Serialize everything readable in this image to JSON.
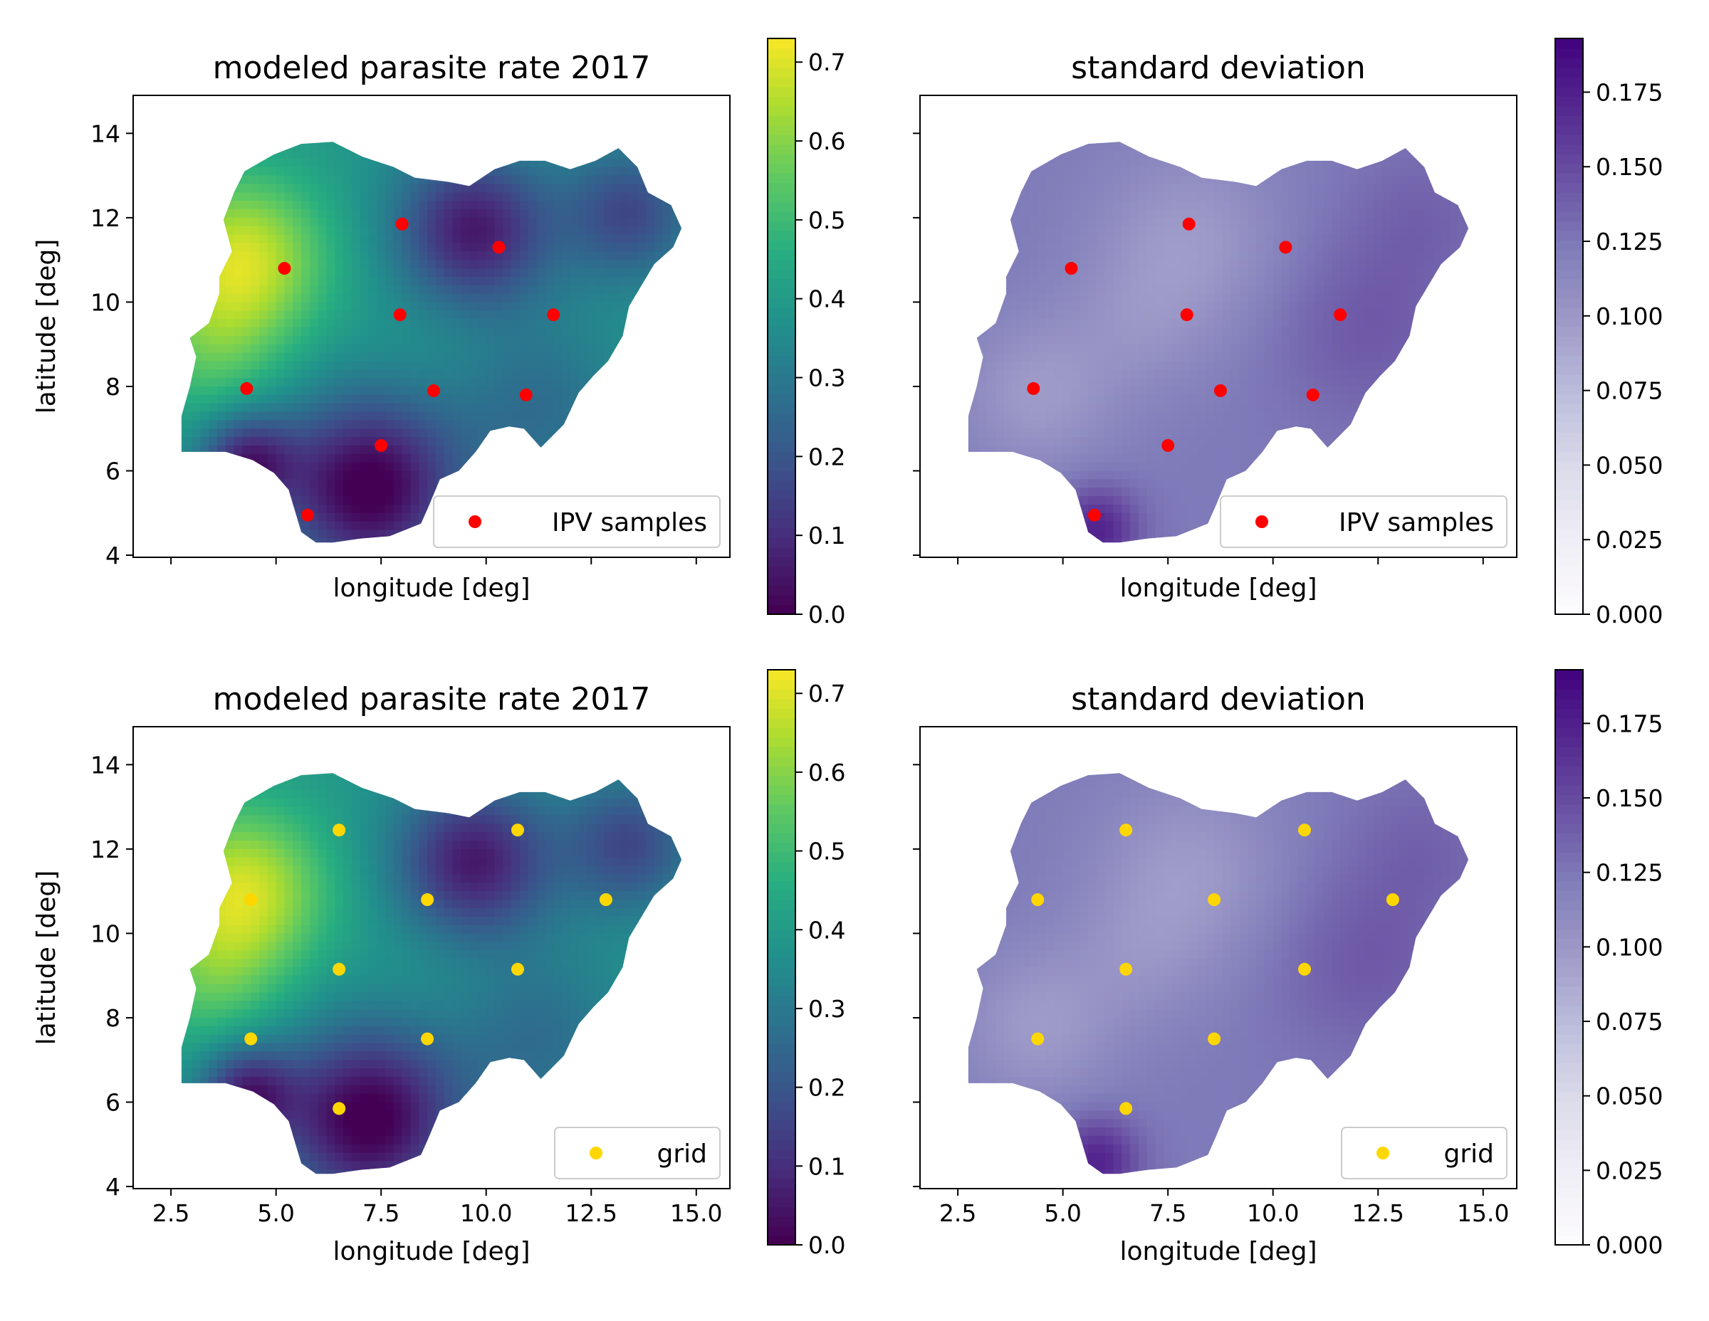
{
  "colors": {
    "sample_marker": "#ff0000",
    "grid_marker": "#ffd700",
    "viridis": [
      "#440154",
      "#472d7b",
      "#3b528b",
      "#2c728e",
      "#21918c",
      "#28ae80",
      "#5ec962",
      "#addc30",
      "#fde725"
    ],
    "purples": [
      "#fcfbfd",
      "#efedf5",
      "#dadaeb",
      "#bcbddc",
      "#9e9ac8",
      "#807dba",
      "#6a51a3",
      "#54278f",
      "#3f007d"
    ]
  },
  "chart_data": [
    {
      "type": "heatmap",
      "id": "rate-samples",
      "title": "modeled parasite rate 2017",
      "xlabel": "longitude [deg]",
      "ylabel": "latitude [deg]",
      "xlim": [
        1.6,
        15.8
      ],
      "ylim": [
        3.95,
        14.9
      ],
      "xticks": [
        2.5,
        5.0,
        7.5,
        10.0,
        12.5,
        15.0
      ],
      "xtick_labels": [
        "",
        "",
        "",
        "",
        "",
        ""
      ],
      "yticks": [
        4,
        6,
        8,
        10,
        12,
        14
      ],
      "ytick_labels": [
        "4",
        "6",
        "8",
        "10",
        "12",
        "14"
      ],
      "colormap": "viridis",
      "colorbar": {
        "min": 0.0,
        "max": 0.73,
        "ticks": [
          0.0,
          0.1,
          0.2,
          0.3,
          0.4,
          0.5,
          0.6,
          0.7
        ],
        "tick_labels": [
          "0.0",
          "0.1",
          "0.2",
          "0.3",
          "0.4",
          "0.5",
          "0.6",
          "0.7"
        ]
      },
      "legend": {
        "label": "IPV samples",
        "position": "lower-right"
      },
      "points": [
        {
          "x": 4.3,
          "y": 7.95
        },
        {
          "x": 5.2,
          "y": 10.8
        },
        {
          "x": 5.75,
          "y": 4.95
        },
        {
          "x": 7.5,
          "y": 6.6
        },
        {
          "x": 8.0,
          "y": 11.85
        },
        {
          "x": 7.95,
          "y": 9.7
        },
        {
          "x": 8.75,
          "y": 7.9
        },
        {
          "x": 10.3,
          "y": 11.3
        },
        {
          "x": 11.6,
          "y": 9.7
        },
        {
          "x": 10.95,
          "y": 7.8
        }
      ]
    },
    {
      "type": "heatmap",
      "id": "sd-samples",
      "title": "standard deviation",
      "xlabel": "longitude [deg]",
      "ylabel": "",
      "xlim": [
        1.6,
        15.8
      ],
      "ylim": [
        3.95,
        14.9
      ],
      "xticks": [
        2.5,
        5.0,
        7.5,
        10.0,
        12.5,
        15.0
      ],
      "xtick_labels": [
        "",
        "",
        "",
        "",
        "",
        ""
      ],
      "yticks": [
        4,
        6,
        8,
        10,
        12,
        14
      ],
      "ytick_labels": [
        "",
        "",
        "",
        "",
        "",
        ""
      ],
      "colormap": "purples",
      "colorbar": {
        "min": 0.0,
        "max": 0.193,
        "ticks": [
          0.0,
          0.025,
          0.05,
          0.075,
          0.1,
          0.125,
          0.15,
          0.175
        ],
        "tick_labels": [
          "0.000",
          "0.025",
          "0.050",
          "0.075",
          "0.100",
          "0.125",
          "0.150",
          "0.175"
        ]
      },
      "legend": {
        "label": "IPV samples",
        "position": "lower-right"
      },
      "points": [
        {
          "x": 4.3,
          "y": 7.95
        },
        {
          "x": 5.2,
          "y": 10.8
        },
        {
          "x": 5.75,
          "y": 4.95
        },
        {
          "x": 7.5,
          "y": 6.6
        },
        {
          "x": 8.0,
          "y": 11.85
        },
        {
          "x": 7.95,
          "y": 9.7
        },
        {
          "x": 8.75,
          "y": 7.9
        },
        {
          "x": 10.3,
          "y": 11.3
        },
        {
          "x": 11.6,
          "y": 9.7
        },
        {
          "x": 10.95,
          "y": 7.8
        }
      ]
    },
    {
      "type": "heatmap",
      "id": "rate-grid",
      "title": "modeled parasite rate 2017",
      "xlabel": "longitude [deg]",
      "ylabel": "latitude [deg]",
      "xlim": [
        1.6,
        15.8
      ],
      "ylim": [
        3.95,
        14.9
      ],
      "xticks": [
        2.5,
        5.0,
        7.5,
        10.0,
        12.5,
        15.0
      ],
      "xtick_labels": [
        "2.5",
        "5.0",
        "7.5",
        "10.0",
        "12.5",
        "15.0"
      ],
      "yticks": [
        4,
        6,
        8,
        10,
        12,
        14
      ],
      "ytick_labels": [
        "4",
        "6",
        "8",
        "10",
        "12",
        "14"
      ],
      "colormap": "viridis",
      "colorbar": {
        "min": 0.0,
        "max": 0.73,
        "ticks": [
          0.0,
          0.1,
          0.2,
          0.3,
          0.4,
          0.5,
          0.6,
          0.7
        ],
        "tick_labels": [
          "0.0",
          "0.1",
          "0.2",
          "0.3",
          "0.4",
          "0.5",
          "0.6",
          "0.7"
        ]
      },
      "legend": {
        "label": "grid",
        "position": "lower-right"
      },
      "points": [
        {
          "x": 4.4,
          "y": 10.8
        },
        {
          "x": 6.5,
          "y": 12.45
        },
        {
          "x": 8.6,
          "y": 10.8
        },
        {
          "x": 10.75,
          "y": 12.45
        },
        {
          "x": 12.85,
          "y": 10.8
        },
        {
          "x": 4.4,
          "y": 7.5
        },
        {
          "x": 6.5,
          "y": 9.15
        },
        {
          "x": 8.6,
          "y": 7.5
        },
        {
          "x": 10.75,
          "y": 9.15
        },
        {
          "x": 6.5,
          "y": 5.85
        }
      ]
    },
    {
      "type": "heatmap",
      "id": "sd-grid",
      "title": "standard deviation",
      "xlabel": "longitude [deg]",
      "ylabel": "",
      "xlim": [
        1.6,
        15.8
      ],
      "ylim": [
        3.95,
        14.9
      ],
      "xticks": [
        2.5,
        5.0,
        7.5,
        10.0,
        12.5,
        15.0
      ],
      "xtick_labels": [
        "2.5",
        "5.0",
        "7.5",
        "10.0",
        "12.5",
        "15.0"
      ],
      "yticks": [
        4,
        6,
        8,
        10,
        12,
        14
      ],
      "ytick_labels": [
        "",
        "",
        "",
        "",
        "",
        ""
      ],
      "colormap": "purples",
      "colorbar": {
        "min": 0.0,
        "max": 0.193,
        "ticks": [
          0.0,
          0.025,
          0.05,
          0.075,
          0.1,
          0.125,
          0.15,
          0.175
        ],
        "tick_labels": [
          "0.000",
          "0.025",
          "0.050",
          "0.075",
          "0.100",
          "0.125",
          "0.150",
          "0.175"
        ]
      },
      "legend": {
        "label": "grid",
        "position": "lower-right"
      },
      "points": [
        {
          "x": 4.4,
          "y": 10.8
        },
        {
          "x": 6.5,
          "y": 12.45
        },
        {
          "x": 8.6,
          "y": 10.8
        },
        {
          "x": 10.75,
          "y": 12.45
        },
        {
          "x": 12.85,
          "y": 10.8
        },
        {
          "x": 4.4,
          "y": 7.5
        },
        {
          "x": 6.5,
          "y": 9.15
        },
        {
          "x": 8.6,
          "y": 7.5
        },
        {
          "x": 10.75,
          "y": 9.15
        },
        {
          "x": 6.5,
          "y": 5.85
        }
      ]
    }
  ]
}
